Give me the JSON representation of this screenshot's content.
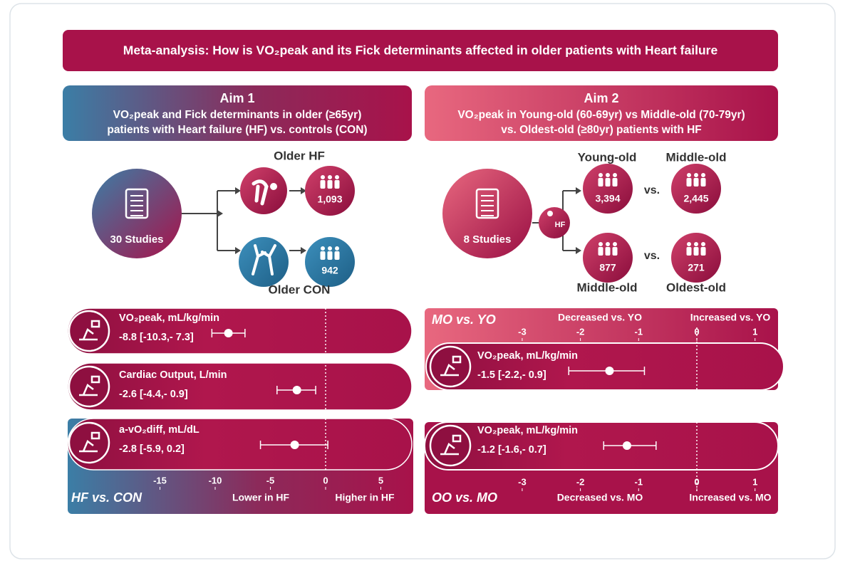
{
  "title": "Meta-analysis: How is VO₂peak and its Fick determinants affected in older patients with Heart failure",
  "aim1": {
    "heading": "Aim 1",
    "description": [
      "VO₂peak and Fick determinants in older (≥65yr)",
      "patients with Heart failure (HF) vs. controls (CON)"
    ],
    "studies": "30 Studies",
    "groups": [
      {
        "label": "Older HF",
        "n": "1,093"
      },
      {
        "label": "Older CON",
        "n": "942"
      }
    ],
    "forest": {
      "label": "HF vs. CON",
      "lower_label": "Lower in HF",
      "higher_label": "Higher in HF",
      "xlim": [
        -15,
        5
      ],
      "xticks": [
        -15,
        -10,
        -5,
        0,
        5
      ],
      "outcomes": [
        {
          "name": "VO₂peak, mL/kg/min",
          "estimate": -8.8,
          "ci_low": -10.3,
          "ci_high": -7.3,
          "ci_label": "-8.8 [-10.3,- 7.3]"
        },
        {
          "name": "Cardiac Output, L/min",
          "estimate": -2.6,
          "ci_low": -4.4,
          "ci_high": -0.9,
          "ci_label": "-2.6 [-4.4,- 0.9]"
        },
        {
          "name": "a-vO₂diff, mL/dL",
          "estimate": -2.8,
          "ci_low": -5.9,
          "ci_high": 0.2,
          "ci_label": "-2.8 [-5.9, 0.2]"
        }
      ]
    }
  },
  "aim2": {
    "heading": "Aim 2",
    "description": [
      "VO₂peak in Young-old (60-69yr) vs Middle-old (70-79yr)",
      "vs. Oldest-old (≥80yr) patients with HF"
    ],
    "studies": "8 Studies",
    "hf_label": "HF",
    "vs_label": "vs.",
    "groups": [
      {
        "label": "Young-old",
        "n": "3,394"
      },
      {
        "label": "Middle-old",
        "n": "2,445"
      },
      {
        "label": "Middle-old",
        "n": "877"
      },
      {
        "label": "Oldest-old",
        "n": "271"
      }
    ],
    "forest_mo_yo": {
      "label": "MO vs. YO",
      "decreased_label": "Decreased vs. YO",
      "increased_label": "Increased vs. YO",
      "xlim": [
        -3,
        1
      ],
      "xticks": [
        -3,
        -2,
        -1,
        0,
        1
      ],
      "outcomes": [
        {
          "name": "VO₂peak, mL/kg/min",
          "estimate": -1.5,
          "ci_low": -2.2,
          "ci_high": -0.9,
          "ci_label": "-1.5 [-2.2,- 0.9]"
        }
      ]
    },
    "forest_oo_mo": {
      "label": "OO vs. MO",
      "decreased_label": "Decreased vs. MO",
      "increased_label": "Increased vs. MO",
      "xlim": [
        -3,
        1
      ],
      "xticks": [
        -3,
        -2,
        -1,
        0,
        1
      ],
      "outcomes": [
        {
          "name": "VO₂peak, mL/kg/min",
          "estimate": -1.2,
          "ci_low": -1.6,
          "ci_high": -0.7,
          "ci_label": "-1.2 [-1.6,- 0.7]"
        }
      ]
    }
  }
}
